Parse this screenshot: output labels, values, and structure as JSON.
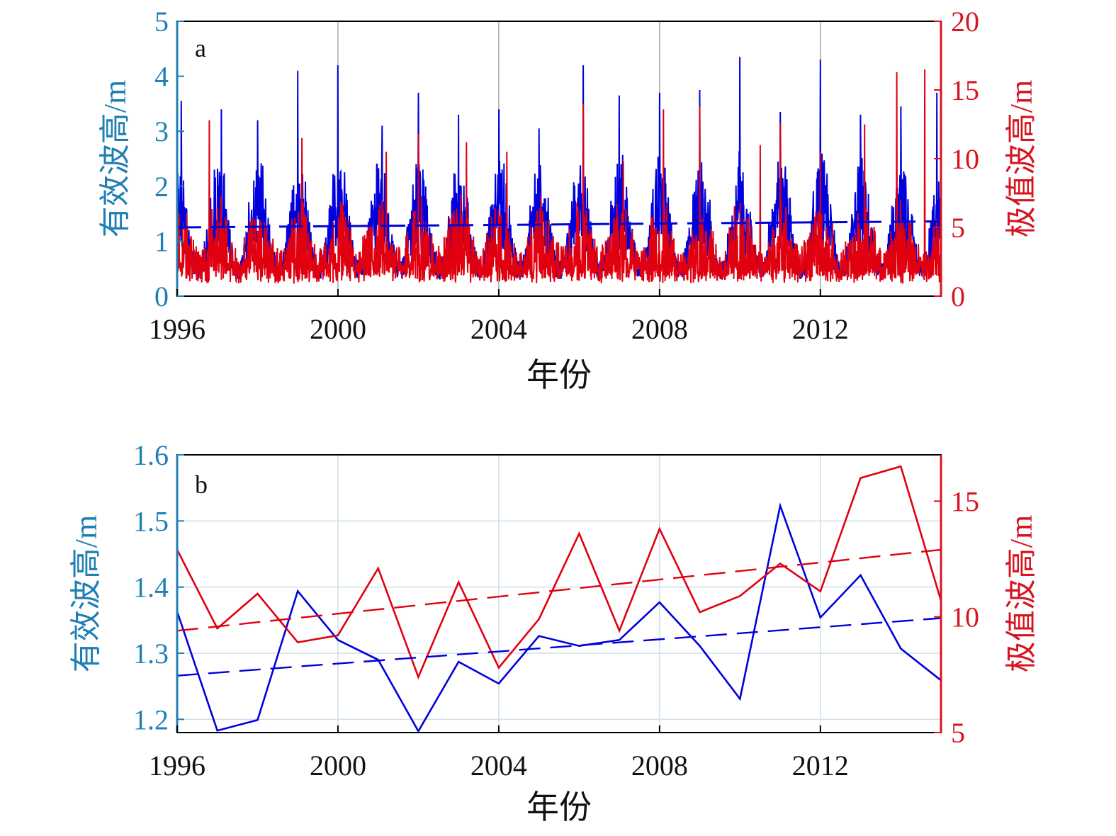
{
  "chart_data": [
    {
      "type": "line",
      "panel_label": "a",
      "xlabel": "年份",
      "ylabel_left": "有效波高/m",
      "ylabel_right": "极值波高/m",
      "x_ticks": [
        "1996",
        "2000",
        "2004",
        "2008",
        "2012"
      ],
      "xlim": [
        1996,
        2015
      ],
      "ylim_left": [
        0,
        5
      ],
      "y_ticks_left": [
        "0",
        "1",
        "2",
        "3",
        "4",
        "5"
      ],
      "ylim_right": [
        0,
        20
      ],
      "y_ticks_right": [
        "0",
        "5",
        "10",
        "15",
        "20"
      ],
      "grid": "vertical",
      "colors": {
        "left": "#1f7fb5",
        "right": "#d7141f",
        "series_left": "#0000dd",
        "series_right": "#e00010"
      },
      "series": [
        {
          "axis": "left",
          "style": "solid",
          "description_values": "daily significant wave height, mostly 0.3–3.5 m with winter peaks up to ~4.3 m"
        },
        {
          "axis": "right",
          "style": "solid",
          "description_values": "daily extreme wave height, mostly 1–6 m with peaks up to ~16.5 m"
        },
        {
          "axis": "left",
          "style": "dashed",
          "x": [
            1996,
            2015
          ],
          "values": [
            1.25,
            1.36
          ]
        }
      ],
      "peaks_left": [
        [
          1996.1,
          3.55
        ],
        [
          1997.1,
          3.4
        ],
        [
          1998.0,
          3.2
        ],
        [
          1999.0,
          4.1
        ],
        [
          2000.0,
          4.2
        ],
        [
          2001.1,
          3.1
        ],
        [
          2002.0,
          3.7
        ],
        [
          2003.0,
          3.3
        ],
        [
          2004.0,
          3.4
        ],
        [
          2005.0,
          3.05
        ],
        [
          2006.1,
          4.2
        ],
        [
          2007.0,
          3.65
        ],
        [
          2008.0,
          3.7
        ],
        [
          2009.0,
          3.75
        ],
        [
          2010.0,
          4.35
        ],
        [
          2011.0,
          3.35
        ],
        [
          2012.0,
          4.3
        ],
        [
          2013.0,
          3.3
        ],
        [
          2014.0,
          3.45
        ],
        [
          2014.9,
          3.7
        ]
      ],
      "peaks_right": [
        [
          1996.8,
          12.8
        ],
        [
          1999.1,
          11.5
        ],
        [
          2001.2,
          10.5
        ],
        [
          2002.0,
          11.8
        ],
        [
          2003.2,
          11.2
        ],
        [
          2004.2,
          10.5
        ],
        [
          2006.1,
          14.0
        ],
        [
          2007.1,
          9.8
        ],
        [
          2008.1,
          13.6
        ],
        [
          2009.0,
          13.8
        ],
        [
          2010.5,
          11.0
        ],
        [
          2011.0,
          12.6
        ],
        [
          2012.0,
          10.5
        ],
        [
          2013.1,
          12.5
        ],
        [
          2013.9,
          16.3
        ],
        [
          2014.6,
          16.5
        ]
      ]
    },
    {
      "type": "line",
      "panel_label": "b",
      "xlabel": "年份",
      "ylabel_left": "有效波高/m",
      "ylabel_right": "极值波高/m",
      "x_ticks": [
        "1996",
        "2000",
        "2004",
        "2008",
        "2012"
      ],
      "xlim": [
        1996,
        2015
      ],
      "ylim_left": [
        1.18,
        1.6
      ],
      "y_ticks_left": [
        "1.2",
        "1.3",
        "1.4",
        "1.5",
        "1.6"
      ],
      "ylim_right": [
        5,
        17
      ],
      "y_ticks_right": [
        "5",
        "10",
        "15"
      ],
      "grid": "both",
      "x": [
        1996,
        1997,
        1998,
        1999,
        2000,
        2001,
        2002,
        2003,
        2004,
        2005,
        2006,
        2007,
        2008,
        2009,
        2010,
        2011,
        2012,
        2013,
        2014,
        2015
      ],
      "series": [
        {
          "axis": "left",
          "style": "solid",
          "color": "#0000dd",
          "values": [
            1.363,
            1.183,
            1.199,
            1.394,
            1.32,
            1.29,
            1.182,
            1.287,
            1.254,
            1.326,
            1.311,
            1.32,
            1.377,
            1.311,
            1.231,
            1.523,
            1.354,
            1.418,
            1.307,
            1.259
          ]
        },
        {
          "axis": "right",
          "style": "solid",
          "color": "#e00010",
          "values": [
            12.9,
            9.5,
            11.0,
            8.9,
            9.2,
            12.1,
            7.4,
            11.5,
            7.8,
            9.9,
            13.6,
            9.4,
            13.8,
            10.2,
            10.9,
            12.3,
            11.1,
            16.0,
            16.5,
            10.7
          ]
        },
        {
          "axis": "right",
          "style": "dashed",
          "color": "#e00010",
          "x": [
            1996,
            2015
          ],
          "values": [
            9.4,
            12.9
          ]
        },
        {
          "axis": "left",
          "style": "dashed",
          "color": "#0000dd",
          "x": [
            1996,
            2015
          ],
          "values": [
            1.266,
            1.353
          ]
        }
      ]
    }
  ]
}
